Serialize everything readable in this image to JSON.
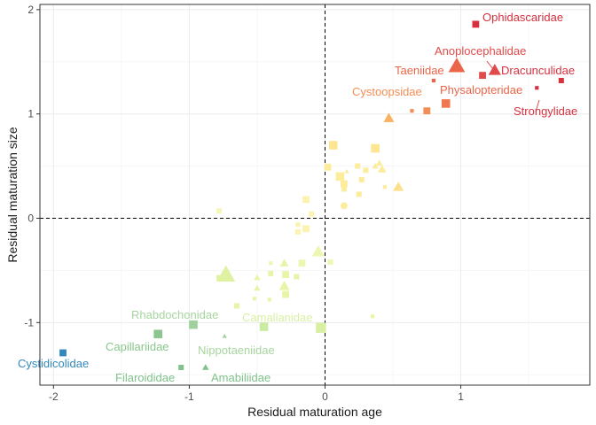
{
  "chart_data": {
    "type": "scatter",
    "xlabel": "Residual maturation age",
    "ylabel": "Residual maturation size",
    "xlim": [
      -2.1,
      1.95
    ],
    "ylim": [
      -1.6,
      2.05
    ],
    "x_ticks": [
      -2,
      -1,
      0,
      1
    ],
    "y_ticks": [
      -1,
      0,
      1,
      2
    ],
    "x_tick_labels": [
      "-2",
      "-1",
      "0",
      "1"
    ],
    "y_tick_labels": [
      "-1",
      "0",
      "1",
      "2"
    ],
    "grid": true,
    "legend": "none",
    "reference_lines": [
      {
        "axis": "x",
        "value": 0,
        "style": "dashed"
      },
      {
        "axis": "y",
        "value": 0,
        "style": "dashed"
      }
    ],
    "points": [
      {
        "x": 1.11,
        "y": 1.86,
        "shape": "square",
        "size": 3,
        "color": "#d7303f"
      },
      {
        "x": 1.74,
        "y": 1.32,
        "shape": "square",
        "size": 2,
        "color": "#d7303f"
      },
      {
        "x": 1.56,
        "y": 1.25,
        "shape": "square",
        "size": 1,
        "color": "#d7303f"
      },
      {
        "x": 1.25,
        "y": 1.42,
        "shape": "triangle",
        "size": 5,
        "color": "#e04a4a"
      },
      {
        "x": 1.16,
        "y": 1.37,
        "shape": "square",
        "size": 3,
        "color": "#e04a4a"
      },
      {
        "x": 0.97,
        "y": 1.46,
        "shape": "triangle",
        "size": 7,
        "color": "#ea6549"
      },
      {
        "x": 0.8,
        "y": 1.32,
        "shape": "square",
        "size": 1,
        "color": "#ea6549"
      },
      {
        "x": 0.89,
        "y": 1.1,
        "shape": "square",
        "size": 4,
        "color": "#f0774f"
      },
      {
        "x": 0.75,
        "y": 1.03,
        "shape": "square",
        "size": 3,
        "color": "#f58e55"
      },
      {
        "x": 0.64,
        "y": 1.03,
        "shape": "square",
        "size": 1,
        "color": "#f58e55"
      },
      {
        "x": 0.47,
        "y": 0.96,
        "shape": "triangle",
        "size": 4,
        "color": "#f9b162"
      },
      {
        "x": 0.06,
        "y": 0.7,
        "shape": "square",
        "size": 4,
        "color": "#fde592"
      },
      {
        "x": 0.37,
        "y": 0.67,
        "shape": "square",
        "size": 4,
        "color": "#fde592"
      },
      {
        "x": 0.02,
        "y": 0.49,
        "shape": "square",
        "size": 3,
        "color": "#fdec9c"
      },
      {
        "x": 0.11,
        "y": 0.4,
        "shape": "square",
        "size": 4,
        "color": "#fdec9c"
      },
      {
        "x": 0.14,
        "y": 0.33,
        "shape": "square",
        "size": 3,
        "color": "#fdec9c"
      },
      {
        "x": 0.24,
        "y": 0.5,
        "shape": "square",
        "size": 2,
        "color": "#fdec9c"
      },
      {
        "x": 0.3,
        "y": 0.46,
        "shape": "square",
        "size": 2,
        "color": "#fdec9c"
      },
      {
        "x": 0.27,
        "y": 0.37,
        "shape": "square",
        "size": 2,
        "color": "#fdec9c"
      },
      {
        "x": 0.37,
        "y": 0.5,
        "shape": "triangle",
        "size": 2,
        "color": "#fdec9c"
      },
      {
        "x": 0.4,
        "y": 0.53,
        "shape": "triangle",
        "size": 2,
        "color": "#fdec9c"
      },
      {
        "x": 0.42,
        "y": 0.47,
        "shape": "triangle",
        "size": 3,
        "color": "#fdec9c"
      },
      {
        "x": 0.16,
        "y": 0.45,
        "shape": "triangle",
        "size": 1,
        "color": "#fdec9c"
      },
      {
        "x": 0.54,
        "y": 0.3,
        "shape": "triangle",
        "size": 4,
        "color": "#fde08b"
      },
      {
        "x": 0.44,
        "y": 0.3,
        "shape": "square",
        "size": 1,
        "color": "#fdec9c"
      },
      {
        "x": 0.14,
        "y": 0.28,
        "shape": "square",
        "size": 2,
        "color": "#fdec9c"
      },
      {
        "x": 0.25,
        "y": 0.23,
        "shape": "square",
        "size": 2,
        "color": "#fdec9c"
      },
      {
        "x": 0.14,
        "y": 0.12,
        "shape": "circle",
        "size": 3,
        "color": "#fdec9c"
      },
      {
        "x": -0.14,
        "y": 0.18,
        "shape": "square",
        "size": 3,
        "color": "#fdf3b0"
      },
      {
        "x": -0.1,
        "y": 0.04,
        "shape": "square",
        "size": 2,
        "color": "#fdf3b0"
      },
      {
        "x": -0.2,
        "y": -0.06,
        "shape": "circle",
        "size": 2,
        "color": "#fdf3b0"
      },
      {
        "x": -0.2,
        "y": -0.13,
        "shape": "square",
        "size": 2,
        "color": "#fdf3b0"
      },
      {
        "x": -0.14,
        "y": -0.1,
        "shape": "square",
        "size": 3,
        "color": "#fdf3b0"
      },
      {
        "x": -0.78,
        "y": 0.07,
        "shape": "square",
        "size": 2,
        "color": "#f3f7b8"
      },
      {
        "x": -0.05,
        "y": -0.32,
        "shape": "triangle",
        "size": 5,
        "color": "#eef7b2"
      },
      {
        "x": -0.17,
        "y": -0.43,
        "shape": "square",
        "size": 3,
        "color": "#eef7b2"
      },
      {
        "x": 0.04,
        "y": -0.42,
        "shape": "square",
        "size": 2,
        "color": "#eef7b2"
      },
      {
        "x": -0.3,
        "y": -0.44,
        "shape": "square",
        "size": 1,
        "color": "#eef7b2"
      },
      {
        "x": -0.4,
        "y": -0.43,
        "shape": "square",
        "size": 1,
        "color": "#eef7b2"
      },
      {
        "x": -0.29,
        "y": -0.54,
        "shape": "square",
        "size": 3,
        "color": "#e6f5a8"
      },
      {
        "x": -0.21,
        "y": -0.56,
        "shape": "square",
        "size": 2,
        "color": "#e6f5a8"
      },
      {
        "x": -0.4,
        "y": -0.53,
        "shape": "square",
        "size": 2,
        "color": "#e6f5a8"
      },
      {
        "x": -0.3,
        "y": -0.43,
        "shape": "triangle",
        "size": 3,
        "color": "#e6f5a8"
      },
      {
        "x": -0.5,
        "y": -0.57,
        "shape": "triangle",
        "size": 2,
        "color": "#e6f5a8"
      },
      {
        "x": -0.5,
        "y": -0.67,
        "shape": "triangle",
        "size": 2,
        "color": "#e6f5a8"
      },
      {
        "x": -0.3,
        "y": -0.65,
        "shape": "triangle",
        "size": 4,
        "color": "#e6f5a8"
      },
      {
        "x": -0.29,
        "y": -0.73,
        "shape": "square",
        "size": 3,
        "color": "#e6f5a8"
      },
      {
        "x": -0.52,
        "y": -0.77,
        "shape": "square",
        "size": 1,
        "color": "#e6f5a8"
      },
      {
        "x": -0.41,
        "y": -0.78,
        "shape": "square",
        "size": 1,
        "color": "#e6f5a8"
      },
      {
        "x": -0.65,
        "y": -0.84,
        "shape": "square",
        "size": 2,
        "color": "#e6f5a8"
      },
      {
        "x": -0.73,
        "y": -0.54,
        "shape": "triangle",
        "size": 8,
        "color": "#dff2a2"
      },
      {
        "x": -0.78,
        "y": -0.57,
        "shape": "square",
        "size": 2,
        "color": "#dff2a2"
      },
      {
        "x": 0.35,
        "y": -0.94,
        "shape": "square",
        "size": 1,
        "color": "#e6f5a8"
      },
      {
        "x": -0.45,
        "y": -1.04,
        "shape": "square",
        "size": 4,
        "color": "#c9eba2"
      },
      {
        "x": -0.03,
        "y": -1.05,
        "shape": "square",
        "size": 5,
        "color": "#d9f0a3"
      },
      {
        "x": -0.97,
        "y": -1.02,
        "shape": "square",
        "size": 4,
        "color": "#9ed19c"
      },
      {
        "x": -0.74,
        "y": -1.13,
        "shape": "triangle",
        "size": 1,
        "color": "#9ed19c"
      },
      {
        "x": -1.23,
        "y": -1.11,
        "shape": "square",
        "size": 4,
        "color": "#8ac68e"
      },
      {
        "x": -0.88,
        "y": -1.43,
        "shape": "triangle",
        "size": 2,
        "color": "#80c28b"
      },
      {
        "x": -1.06,
        "y": -1.43,
        "shape": "square",
        "size": 2,
        "color": "#80c28b"
      },
      {
        "x": -1.93,
        "y": -1.29,
        "shape": "square",
        "size": 3,
        "color": "#3288bd"
      }
    ],
    "annotations": [
      {
        "label": "Ophidascaridae",
        "color": "#d7303f"
      },
      {
        "label": "Anoplocephalidae",
        "color": "#e04a4a"
      },
      {
        "label": "Taeniidae",
        "color": "#ea6549"
      },
      {
        "label": "Dracunculidae",
        "color": "#d7303f"
      },
      {
        "label": "Physalopteridae",
        "color": "#ea6549"
      },
      {
        "label": "Cystoopsidae",
        "color": "#f58e55"
      },
      {
        "label": "Strongylidae",
        "color": "#d7303f"
      },
      {
        "label": "Rhabdochonidae",
        "color": "#a6d69e"
      },
      {
        "label": "Camallanidae",
        "color": "#d9f0a3"
      },
      {
        "label": "Capillariidae",
        "color": "#8ac68e"
      },
      {
        "label": "Nippotaeniidae",
        "color": "#a6d69e"
      },
      {
        "label": "Cystidicolidae",
        "color": "#3288bd"
      },
      {
        "label": "Filaroididae",
        "color": "#80c28b"
      },
      {
        "label": "Amabiliidae",
        "color": "#80c28b"
      }
    ]
  }
}
